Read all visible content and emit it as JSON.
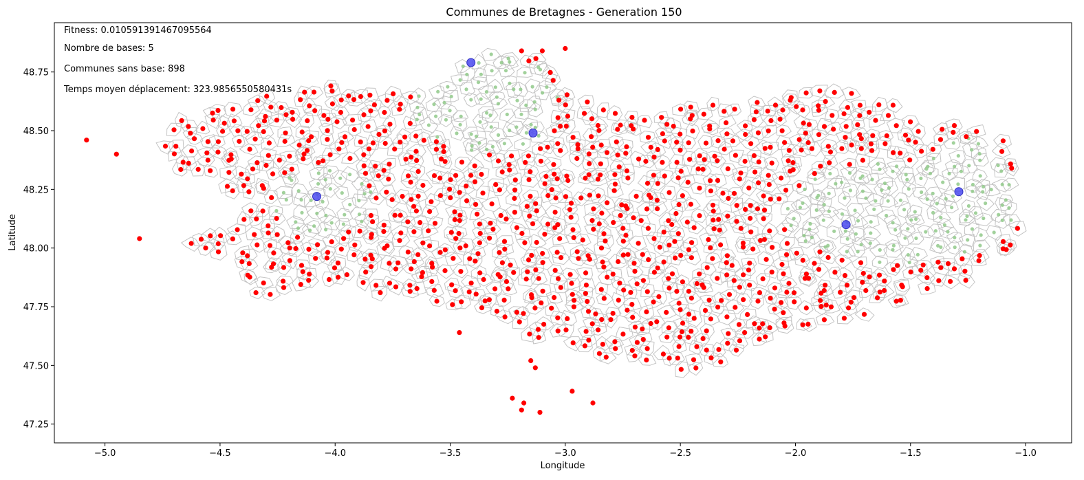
{
  "chart_data": {
    "type": "scatter",
    "title": "Communes de Bretagnes - Generation 150",
    "xlabel": "Longitude",
    "ylabel": "Latitude",
    "xlim": [
      -5.22,
      -0.8
    ],
    "ylim": [
      47.17,
      48.96
    ],
    "xticks": [
      -5.0,
      -4.5,
      -4.0,
      -3.5,
      -3.0,
      -2.5,
      -2.0,
      -1.5,
      -1.0
    ],
    "yticks": [
      47.25,
      47.5,
      47.75,
      48.0,
      48.25,
      48.5,
      48.75
    ],
    "xtick_labels": [
      "−5.0",
      "−4.5",
      "−4.0",
      "−3.5",
      "−3.0",
      "−2.5",
      "−2.0",
      "−1.5",
      "−1.0"
    ],
    "ytick_labels": [
      "47.25",
      "47.50",
      "47.75",
      "48.00",
      "48.25",
      "48.50",
      "48.75"
    ],
    "grid": false,
    "annotations": [
      "Fitness: 0.010591391467095564",
      "Nombre de bases: 5",
      "Communes sans base: 898",
      "Temps moyen déplacement: 323.9856550580431s"
    ],
    "colors": {
      "uncovered": "#ff0000",
      "covered": "#90c98a",
      "base": "#4a4af0",
      "boundary": "#c4c4c4"
    },
    "bases": [
      {
        "lon": -3.41,
        "lat": 48.79
      },
      {
        "lon": -3.14,
        "lat": 48.49
      },
      {
        "lon": -4.08,
        "lat": 48.22
      },
      {
        "lon": -1.29,
        "lat": 48.24
      },
      {
        "lon": -1.78,
        "lat": 48.1
      }
    ],
    "uncovered_outliers": [
      {
        "lon": -5.08,
        "lat": 48.46
      },
      {
        "lon": -4.95,
        "lat": 48.4
      },
      {
        "lon": -4.85,
        "lat": 48.04
      },
      {
        "lon": -3.46,
        "lat": 47.64
      },
      {
        "lon": -3.23,
        "lat": 47.36
      },
      {
        "lon": -3.18,
        "lat": 47.34
      },
      {
        "lon": -3.19,
        "lat": 47.31
      },
      {
        "lon": -3.11,
        "lat": 47.3
      },
      {
        "lon": -2.97,
        "lat": 47.39
      },
      {
        "lon": -2.88,
        "lat": 47.34
      },
      {
        "lon": -3.13,
        "lat": 47.49
      },
      {
        "lon": -3.15,
        "lat": 47.52
      },
      {
        "lon": -3.0,
        "lat": 48.85
      },
      {
        "lon": -3.1,
        "lat": 48.84
      },
      {
        "lon": -3.19,
        "lat": 48.84
      }
    ]
  }
}
